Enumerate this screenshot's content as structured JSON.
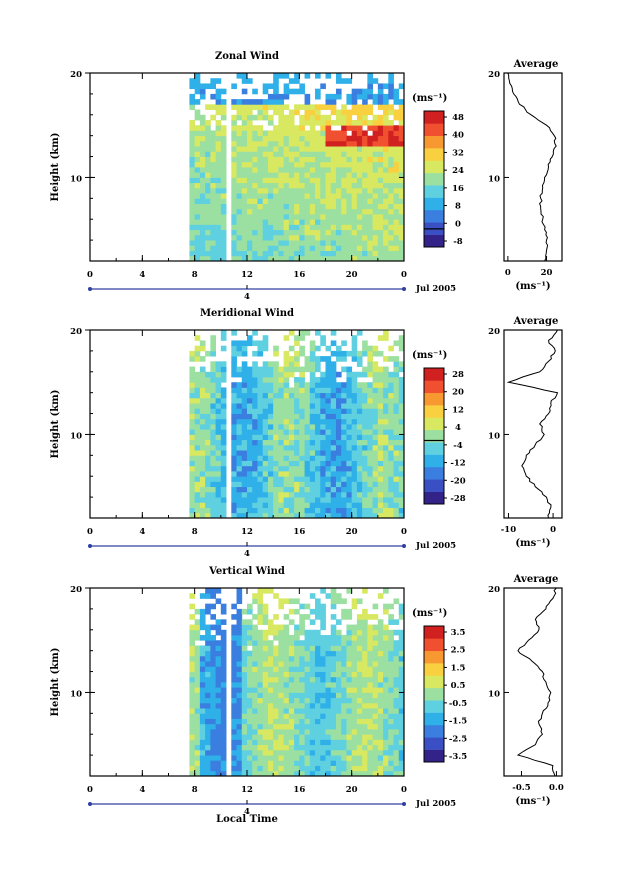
{
  "xaxis": {
    "ticks": [
      "0",
      "4",
      "8",
      "12",
      "16",
      "20",
      "0"
    ],
    "day_label": "4",
    "date_label": "Jul 2005",
    "xlabel": "Local Time"
  },
  "palette": [
    "#332288",
    "#3b4fc4",
    "#3a7fe0",
    "#2fb0e8",
    "#5fd0e0",
    "#9be0a0",
    "#d8e860",
    "#f8d040",
    "#f89830",
    "#f05030",
    "#d02020"
  ],
  "colors": {
    "axis": "#000000",
    "missing": "#ffffff",
    "marker": "#3040a0"
  },
  "chart_data": [
    {
      "type": "heatmap",
      "title": "Zonal Wind",
      "ylabel": "Height (km)",
      "x_range": [
        0,
        24
      ],
      "ylim": [
        2,
        20
      ],
      "ytick_labels": [
        "10",
        "20"
      ],
      "colorbar_unit": "(ms⁻¹)",
      "colorbar_labels": [
        "48",
        "40",
        "32",
        "24",
        "16",
        "8",
        "0",
        "-8"
      ],
      "colorbar_range": [
        -8,
        52
      ],
      "zero_line": 0,
      "field": {
        "base": 18,
        "amplitude": 10,
        "jet_height": 14,
        "jet_value": 48
      },
      "profile": {
        "title": "Average",
        "xlabel": "(ms⁻¹)",
        "xtick_labels": [
          "0",
          "20"
        ],
        "xlim": [
          -2,
          28
        ],
        "heights": [
          2,
          3,
          4,
          5,
          6,
          7,
          8,
          9,
          10,
          11,
          12,
          13,
          14,
          15,
          16,
          17,
          18,
          19,
          20
        ],
        "values": [
          19,
          20,
          20,
          19,
          18,
          17,
          17,
          18,
          19,
          21,
          23,
          25,
          24,
          20,
          12,
          6,
          3,
          1,
          0
        ]
      }
    },
    {
      "type": "heatmap",
      "title": "Meridional Wind",
      "ylabel": "Height (km)",
      "x_range": [
        0,
        24
      ],
      "ylim": [
        2,
        20
      ],
      "ytick_labels": [
        "10",
        "20"
      ],
      "colorbar_unit": "(ms⁻¹)",
      "colorbar_labels": [
        "28",
        "20",
        "12",
        "4",
        "-4",
        "-12",
        "-20",
        "-28"
      ],
      "colorbar_range": [
        -28,
        32
      ],
      "zero_line": 0,
      "field": {
        "base": -4,
        "amplitude": 12
      },
      "profile": {
        "title": "Average",
        "xlabel": "(ms⁻¹)",
        "xtick_labels": [
          "-10",
          "0"
        ],
        "xlim": [
          -11,
          2
        ],
        "heights": [
          2,
          3,
          4,
          5,
          6,
          7,
          8,
          9,
          10,
          11,
          12,
          13,
          14,
          15,
          16,
          17,
          18,
          19,
          20
        ],
        "values": [
          -1,
          -0.5,
          -1.5,
          -4,
          -6,
          -7,
          -6,
          -4,
          -2,
          -3,
          -1,
          -0.5,
          1,
          -10,
          -3,
          -1,
          0.5,
          -1,
          1
        ]
      }
    },
    {
      "type": "heatmap",
      "title": "Vertical Wind",
      "ylabel": "Height (km)",
      "x_range": [
        0,
        24
      ],
      "ylim": [
        2,
        20
      ],
      "ytick_labels": [
        "10",
        "20"
      ],
      "colorbar_unit": "(ms⁻¹)",
      "colorbar_labels": [
        "3.5",
        "2.5",
        "1.5",
        "0.5",
        "-0.5",
        "-1.5",
        "-2.5",
        "-3.5"
      ],
      "colorbar_range": [
        -4.0,
        4.0
      ],
      "zero_line": null,
      "field": {
        "base": -0.3,
        "amplitude": 1.2
      },
      "profile": {
        "title": "Average",
        "xlabel": "(ms⁻¹)",
        "xtick_labels": [
          "-0.5",
          "0.0"
        ],
        "xlim": [
          -0.75,
          0.08
        ],
        "heights": [
          2,
          3,
          4,
          5,
          6,
          7,
          8,
          9,
          10,
          11,
          12,
          13,
          14,
          15,
          16,
          17,
          18,
          19,
          20
        ],
        "values": [
          -0.02,
          -0.05,
          -0.55,
          -0.3,
          -0.2,
          -0.25,
          -0.2,
          -0.12,
          -0.08,
          -0.15,
          -0.2,
          -0.35,
          -0.55,
          -0.4,
          -0.25,
          -0.3,
          -0.15,
          -0.05,
          0.0
        ]
      }
    }
  ]
}
